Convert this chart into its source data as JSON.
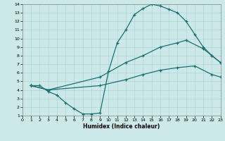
{
  "xlabel": "Humidex (Indice chaleur)",
  "xlim": [
    0,
    23
  ],
  "ylim": [
    1,
    14
  ],
  "xticks": [
    0,
    1,
    2,
    3,
    4,
    5,
    6,
    7,
    8,
    9,
    10,
    11,
    12,
    13,
    14,
    15,
    16,
    17,
    18,
    19,
    20,
    21,
    22,
    23
  ],
  "yticks": [
    1,
    2,
    3,
    4,
    5,
    6,
    7,
    8,
    9,
    10,
    11,
    12,
    13,
    14
  ],
  "bg_color": "#cce8e8",
  "line_color": "#1a7070",
  "grid_color": "#aed4d4",
  "line1_x": [
    1,
    2,
    3,
    4,
    5,
    6,
    7,
    8,
    9,
    10,
    11,
    12,
    13,
    14,
    15,
    16,
    17,
    18,
    19,
    20,
    21,
    22,
    23
  ],
  "line1_y": [
    4.5,
    4.5,
    3.8,
    3.4,
    2.5,
    1.8,
    1.2,
    1.2,
    1.3,
    6.2,
    9.5,
    11.0,
    12.8,
    13.5,
    14.0,
    13.8,
    13.4,
    13.0,
    12.0,
    10.5,
    9.0,
    8.0,
    7.2
  ],
  "line2_x": [
    1,
    3,
    9,
    12,
    14,
    16,
    18,
    19,
    21,
    22,
    23
  ],
  "line2_y": [
    4.5,
    4.0,
    5.5,
    7.2,
    8.0,
    9.0,
    9.5,
    9.8,
    8.8,
    8.0,
    7.2
  ],
  "line3_x": [
    1,
    3,
    9,
    12,
    14,
    16,
    18,
    20,
    22,
    23
  ],
  "line3_y": [
    4.5,
    4.0,
    4.5,
    5.2,
    5.8,
    6.3,
    6.6,
    6.8,
    5.8,
    5.5
  ]
}
